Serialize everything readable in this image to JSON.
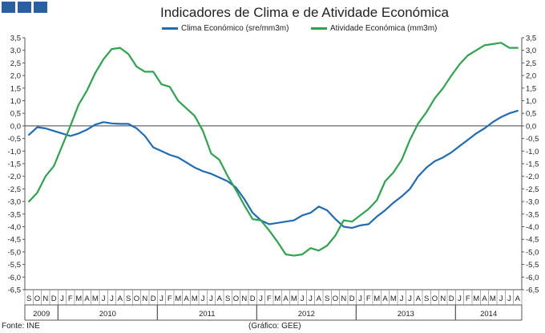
{
  "header": {
    "title": "Indicadores de Clima e de Atividade Económica",
    "logo_color": "#2a5fa0"
  },
  "footer": {
    "source": "Fonte: INE",
    "credit": "(Gráfico: GEE)"
  },
  "chart_data": {
    "type": "line",
    "title": "Indicadores de Clima e de Atividade Económica",
    "xlabel": "",
    "ylabel": "",
    "ylim": [
      -6.5,
      3.5
    ],
    "grid": false,
    "legend_position": "top",
    "y_ticks": [
      "3,5",
      "3,0",
      "2,5",
      "2,0",
      "1,5",
      "1,0",
      "0,5",
      "0,0",
      "-0,5",
      "-1,0",
      "-1,5",
      "-2,0",
      "-2,5",
      "-3,0",
      "-3,5",
      "-4,0",
      "-4,5",
      "-5,0",
      "-5,5",
      "-6,0",
      "-6,5"
    ],
    "x_month_labels": [
      "S",
      "O",
      "N",
      "D",
      "J",
      "F",
      "M",
      "A",
      "M",
      "J",
      "J",
      "A",
      "S",
      "O",
      "N",
      "D",
      "J",
      "F",
      "M",
      "A",
      "M",
      "J",
      "J",
      "A",
      "S",
      "O",
      "N",
      "D",
      "J",
      "F",
      "M",
      "A",
      "M",
      "J",
      "J",
      "A",
      "S",
      "O",
      "N",
      "D",
      "J",
      "F",
      "M",
      "A",
      "M",
      "J",
      "J",
      "A",
      "S",
      "O",
      "N",
      "D",
      "J",
      "F",
      "M",
      "A",
      "M",
      "J",
      "J",
      "A"
    ],
    "year_labels": [
      {
        "label": "2009",
        "start": 0,
        "end": 4
      },
      {
        "label": "2010",
        "start": 4,
        "end": 16
      },
      {
        "label": "2011",
        "start": 16,
        "end": 28
      },
      {
        "label": "2012",
        "start": 28,
        "end": 40
      },
      {
        "label": "2013",
        "start": 40,
        "end": 52
      },
      {
        "label": "2014",
        "start": 52,
        "end": 60
      }
    ],
    "series": [
      {
        "name": "Clima Económico (sre/mm3m)",
        "color": "#1f6cb5",
        "values": [
          -0.35,
          -0.05,
          -0.1,
          -0.2,
          -0.3,
          -0.4,
          -0.3,
          -0.15,
          0.05,
          0.15,
          0.1,
          0.08,
          0.08,
          -0.1,
          -0.4,
          -0.85,
          -1.0,
          -1.15,
          -1.25,
          -1.45,
          -1.65,
          -1.8,
          -1.9,
          -2.05,
          -2.2,
          -2.45,
          -2.9,
          -3.45,
          -3.75,
          -3.9,
          -3.85,
          -3.8,
          -3.75,
          -3.55,
          -3.45,
          -3.2,
          -3.35,
          -3.7,
          -4.0,
          -4.05,
          -3.95,
          -3.9,
          -3.6,
          -3.35,
          -3.05,
          -2.8,
          -2.5,
          -2.0,
          -1.65,
          -1.4,
          -1.25,
          -1.05,
          -0.8,
          -0.55,
          -0.3,
          -0.1,
          0.15,
          0.35,
          0.5,
          0.6
        ]
      },
      {
        "name": "Atividade Económica (mm3m)",
        "color": "#2ea44f",
        "values": [
          -3.0,
          -2.65,
          -2.0,
          -1.6,
          -0.8,
          0.0,
          0.85,
          1.4,
          2.1,
          2.65,
          3.05,
          3.1,
          2.85,
          2.35,
          2.15,
          2.15,
          1.65,
          1.55,
          1.0,
          0.7,
          0.4,
          -0.2,
          -1.1,
          -1.35,
          -2.0,
          -2.55,
          -3.15,
          -3.7,
          -3.75,
          -4.15,
          -4.6,
          -5.1,
          -5.15,
          -5.1,
          -4.85,
          -4.95,
          -4.75,
          -4.35,
          -3.75,
          -3.8,
          -3.55,
          -3.3,
          -2.95,
          -2.2,
          -1.85,
          -1.35,
          -0.55,
          0.1,
          0.55,
          1.1,
          1.5,
          2.0,
          2.45,
          2.8,
          3.0,
          3.2,
          3.25,
          3.3,
          3.1,
          3.1
        ]
      }
    ]
  }
}
